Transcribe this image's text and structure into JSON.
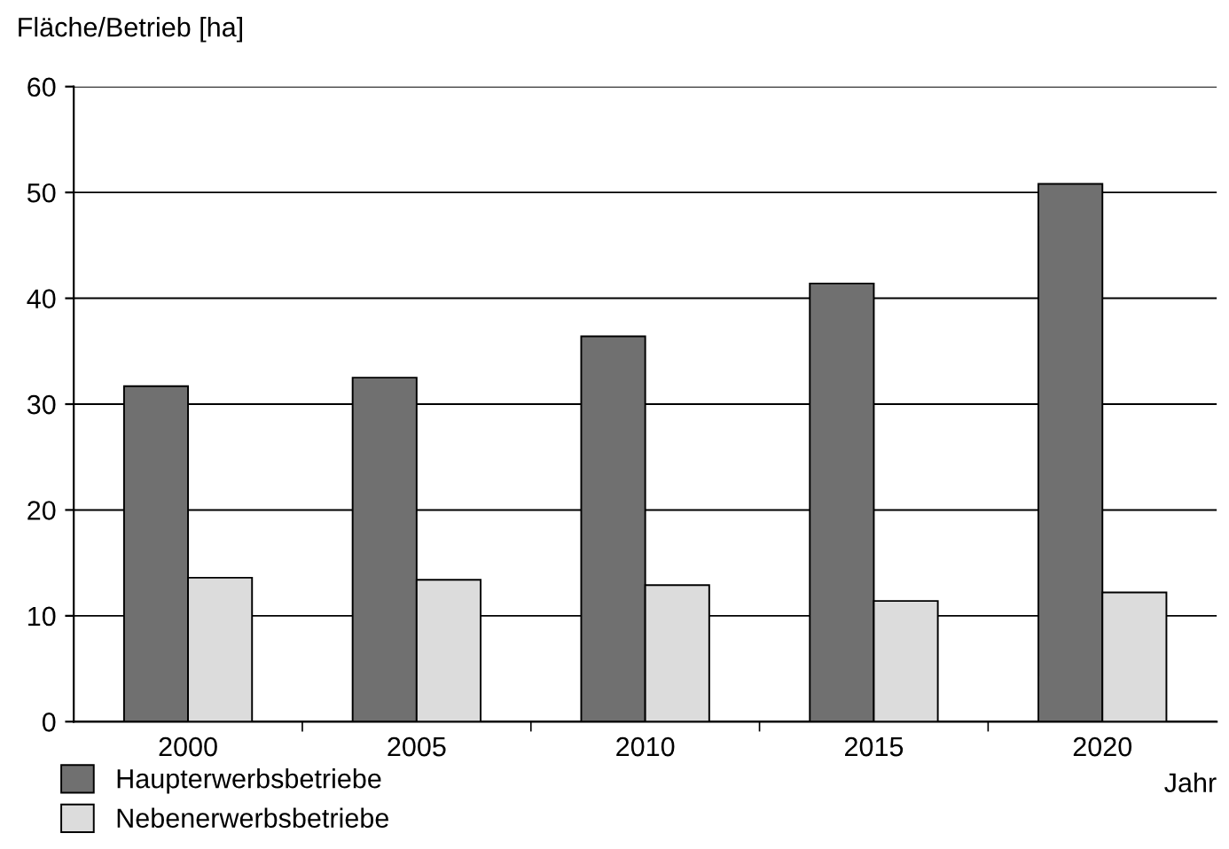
{
  "chart_data": {
    "type": "bar",
    "ylabel": "Fläche/Betrieb [ha]",
    "xlabel": "Jahr",
    "categories": [
      "2000",
      "2005",
      "2010",
      "2015",
      "2020"
    ],
    "series": [
      {
        "name": "Haupterwerbsbetriebe",
        "color": "#707070",
        "values": [
          31.7,
          32.5,
          36.4,
          41.4,
          50.8
        ]
      },
      {
        "name": "Nebenerwerbsbetriebe",
        "color": "#dcdcdc",
        "values": [
          13.6,
          13.4,
          12.9,
          11.4,
          12.2
        ]
      }
    ],
    "ylim": [
      0,
      60
    ],
    "yticks": [
      0,
      10,
      20,
      30,
      40,
      50,
      60
    ],
    "grid": "y",
    "legend": "bottom"
  }
}
